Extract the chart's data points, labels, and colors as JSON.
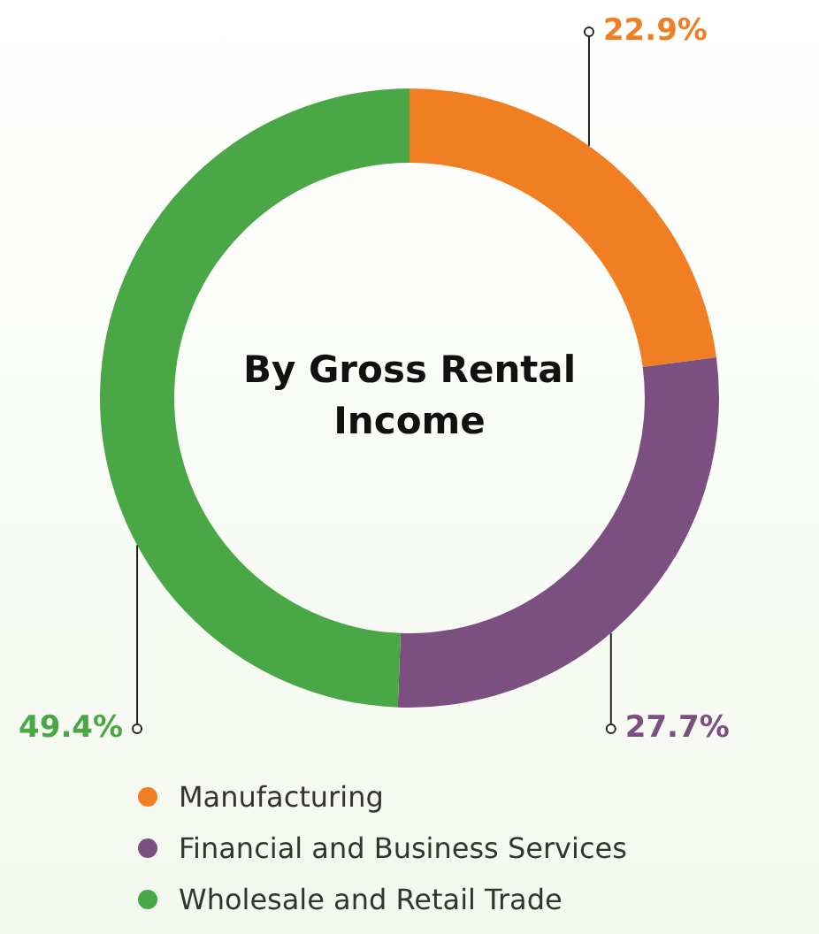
{
  "chart_data": {
    "type": "donut",
    "title": "By Gross Rental Income",
    "categories": [
      "Manufacturing",
      "Financial and Business Services",
      "Wholesale and Retail Trade"
    ],
    "values": [
      22.9,
      27.7,
      49.4
    ],
    "colors": [
      "#f07f23",
      "#7b4f80",
      "#4aa746"
    ],
    "value_labels": [
      "22.9%",
      "27.7%",
      "49.4%"
    ],
    "legend": "bottom"
  }
}
